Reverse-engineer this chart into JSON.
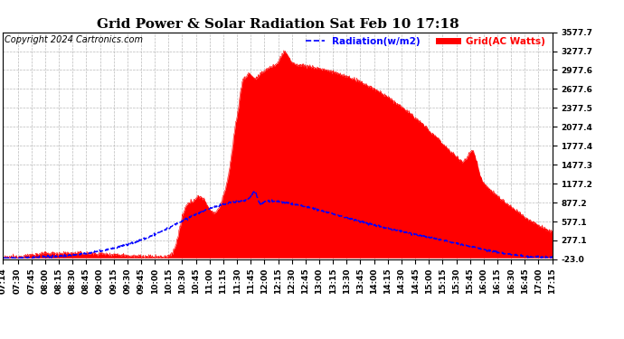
{
  "title": "Grid Power & Solar Radiation Sat Feb 10 17:18",
  "copyright": "Copyright 2024 Cartronics.com",
  "legend_radiation": "Radiation(w/m2)",
  "legend_grid": "Grid(AC Watts)",
  "radiation_color": "blue",
  "grid_color": "red",
  "bg_color": "#ffffff",
  "plot_bg_color": "#ffffff",
  "ymin": -23.0,
  "ymax": 3577.7,
  "yticks": [
    -23.0,
    277.1,
    577.1,
    877.2,
    1177.2,
    1477.3,
    1777.4,
    2077.4,
    2377.5,
    2677.6,
    2977.6,
    3277.7,
    3577.7
  ],
  "xtick_labels": [
    "07:14",
    "07:30",
    "07:45",
    "08:00",
    "08:15",
    "08:30",
    "08:45",
    "09:00",
    "09:15",
    "09:30",
    "09:45",
    "10:00",
    "10:15",
    "10:30",
    "10:45",
    "11:00",
    "11:15",
    "11:30",
    "11:45",
    "12:00",
    "12:15",
    "12:30",
    "12:45",
    "13:00",
    "13:15",
    "13:30",
    "13:45",
    "14:00",
    "14:15",
    "14:30",
    "14:45",
    "15:00",
    "15:15",
    "15:30",
    "15:45",
    "16:00",
    "16:15",
    "16:30",
    "16:45",
    "17:00",
    "17:15"
  ],
  "title_fontsize": 11,
  "tick_fontsize": 6.5,
  "copyright_fontsize": 7
}
